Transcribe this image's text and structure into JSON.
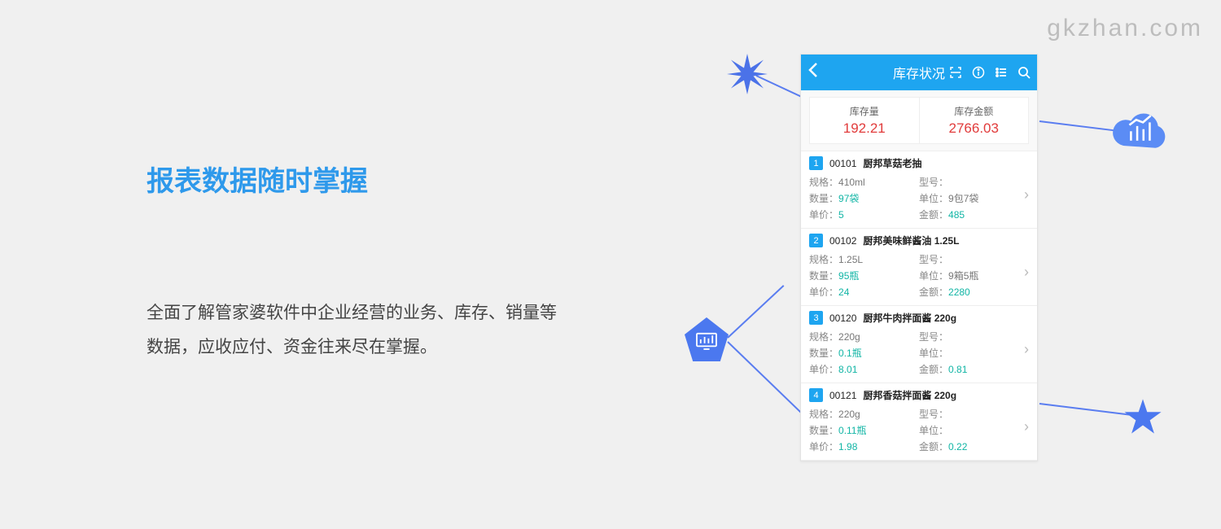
{
  "watermark": "gkzhan.com",
  "heading": "报表数据随时掌握",
  "description": "全面了解管家婆软件中企业经营的业务、库存、销量等数据，应收应付、资金往来尽在掌握。",
  "colors": {
    "accent_blue": "#1ea5f0",
    "heading_blue": "#2e99eb",
    "value_red": "#e13b3b",
    "value_teal": "#11b5a5",
    "deco_blue": "#4b72e8",
    "bg": "#f0f0f0"
  },
  "app": {
    "title": "库存状况",
    "summary": [
      {
        "label": "库存量",
        "value": "192.21"
      },
      {
        "label": "库存金额",
        "value": "2766.03"
      }
    ],
    "field_labels": {
      "spec": "规格：",
      "model": "型号：",
      "qty": "数量：",
      "unit": "单位：",
      "price": "单价：",
      "amount": "金额："
    },
    "items": [
      {
        "idx": "1",
        "code": "00101",
        "name": "厨邦草菇老抽",
        "spec": "410ml",
        "model": "",
        "qty": "97袋",
        "unit": "9包7袋",
        "price": "5",
        "amount": "485"
      },
      {
        "idx": "2",
        "code": "00102",
        "name": "厨邦美味鲜酱油 1.25L",
        "spec": "1.25L",
        "model": "",
        "qty": "95瓶",
        "unit": "9箱5瓶",
        "price": "24",
        "amount": "2280"
      },
      {
        "idx": "3",
        "code": "00120",
        "name": "厨邦牛肉拌面酱 220g",
        "spec": "220g",
        "model": "",
        "qty": "0.1瓶",
        "unit": "",
        "price": "8.01",
        "amount": "0.81"
      },
      {
        "idx": "4",
        "code": "00121",
        "name": "厨邦香菇拌面酱 220g",
        "spec": "220g",
        "model": "",
        "qty": "0.11瓶",
        "unit": "",
        "price": "1.98",
        "amount": "0.22"
      }
    ]
  }
}
